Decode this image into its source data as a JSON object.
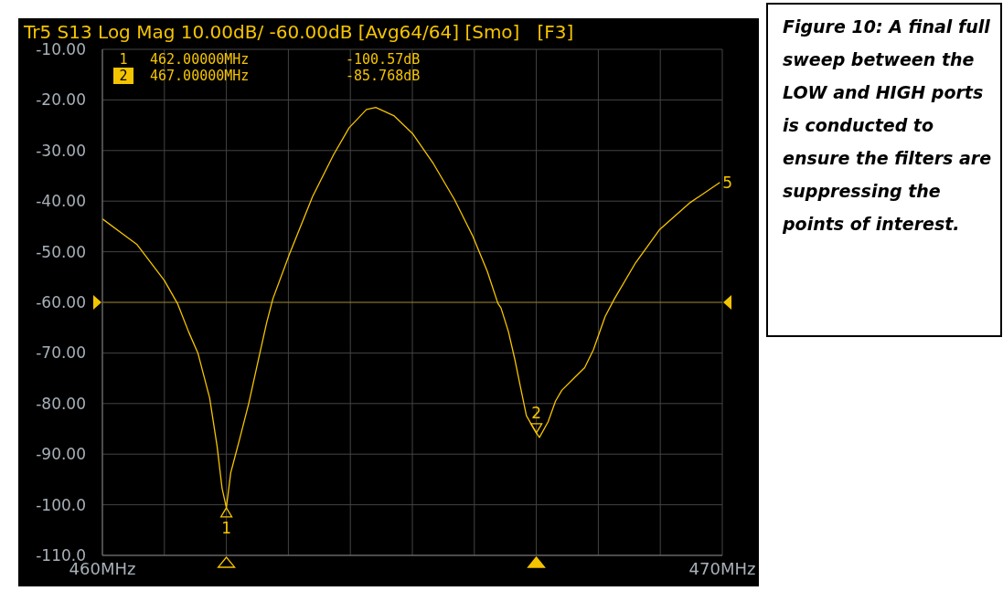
{
  "chart_data": {
    "type": "line",
    "title": "Tr5 S13 Log Mag 10.00dB/ -60.00dB [Avg64/64] [Smo]   [F3]",
    "x": [
      460,
      460.56,
      461.0,
      461.21,
      461.39,
      461.54,
      461.73,
      461.85,
      461.93,
      462,
      462.07,
      462.21,
      462.36,
      462.53,
      462.65,
      462.75,
      463.02,
      463.39,
      463.73,
      463.98,
      464.26,
      464.41,
      464.7,
      465.0,
      465.34,
      465.68,
      465.97,
      466.21,
      466.38,
      466.43,
      466.55,
      466.65,
      466.74,
      466.84,
      467,
      467.05,
      467.19,
      467.31,
      467.41,
      467.63,
      467.78,
      467.92,
      468.11,
      468.26,
      468.6,
      468.99,
      469.48,
      469.96
    ],
    "series": [
      {
        "color": "#f5c400",
        "values": [
          -43.5,
          -48.6,
          -55.7,
          -60.2,
          -65.8,
          -70.0,
          -78.9,
          -88.4,
          -96.7,
          -100.6,
          -93.7,
          -87.2,
          -80.0,
          -70.6,
          -64.0,
          -59.3,
          -50.4,
          -39.1,
          -30.8,
          -25.5,
          -21.9,
          -21.5,
          -23.1,
          -26.6,
          -32.6,
          -39.7,
          -46.8,
          -53.9,
          -60.2,
          -61.1,
          -65.8,
          -71.1,
          -76.5,
          -82.4,
          -85.8,
          -86.7,
          -83.6,
          -79.5,
          -77.4,
          -74.7,
          -72.9,
          -69.4,
          -62.8,
          -59.3,
          -52.2,
          -45.6,
          -40.3,
          -36.3
        ]
      }
    ],
    "xlim": [
      460,
      470
    ],
    "xticks": [
      {
        "value": 460,
        "label": "460MHz"
      },
      {
        "value": 461,
        "label": null
      },
      {
        "value": 462,
        "label": null
      },
      {
        "value": 463,
        "label": null
      },
      {
        "value": 464,
        "label": null
      },
      {
        "value": 465,
        "label": null
      },
      {
        "value": 466,
        "label": null
      },
      {
        "value": 467,
        "label": null
      },
      {
        "value": 468,
        "label": null
      },
      {
        "value": 469,
        "label": null
      },
      {
        "value": 470,
        "label": "470MHz"
      }
    ],
    "ylim": [
      -110,
      -10
    ],
    "yticks": [
      {
        "value": -110,
        "label": "-110.0"
      },
      {
        "value": -100,
        "label": "-100.0"
      },
      {
        "value": -90,
        "label": "-90.00"
      },
      {
        "value": -80,
        "label": "-80.00"
      },
      {
        "value": -70,
        "label": "-70.00"
      },
      {
        "value": -60,
        "label": "-60.00"
      },
      {
        "value": -50,
        "label": "-50.00"
      },
      {
        "value": -40,
        "label": "-40.00"
      },
      {
        "value": -30,
        "label": "-30.00"
      },
      {
        "value": -20,
        "label": "-20.00"
      },
      {
        "value": -10,
        "label": "-10.00"
      }
    ],
    "grid": true,
    "ref_lines": [
      {
        "axis": "y",
        "value": -60,
        "color": "#f5c400"
      }
    ],
    "annotations": [
      "1   462.00000MHz   -100.57dB",
      "2   467.00000MHz   -85.768dB",
      {
        "text": "1",
        "x": 462,
        "y": -100.6
      },
      {
        "text": "2",
        "x": 467,
        "y": -85.8
      },
      {
        "text": "5",
        "x": 469.96,
        "y": -36.3
      },
      "Figure 10: A final full sweep between the LOW and HIGH ports is conducted to ensure the filters are suppressing the points of interest."
    ]
  }
}
